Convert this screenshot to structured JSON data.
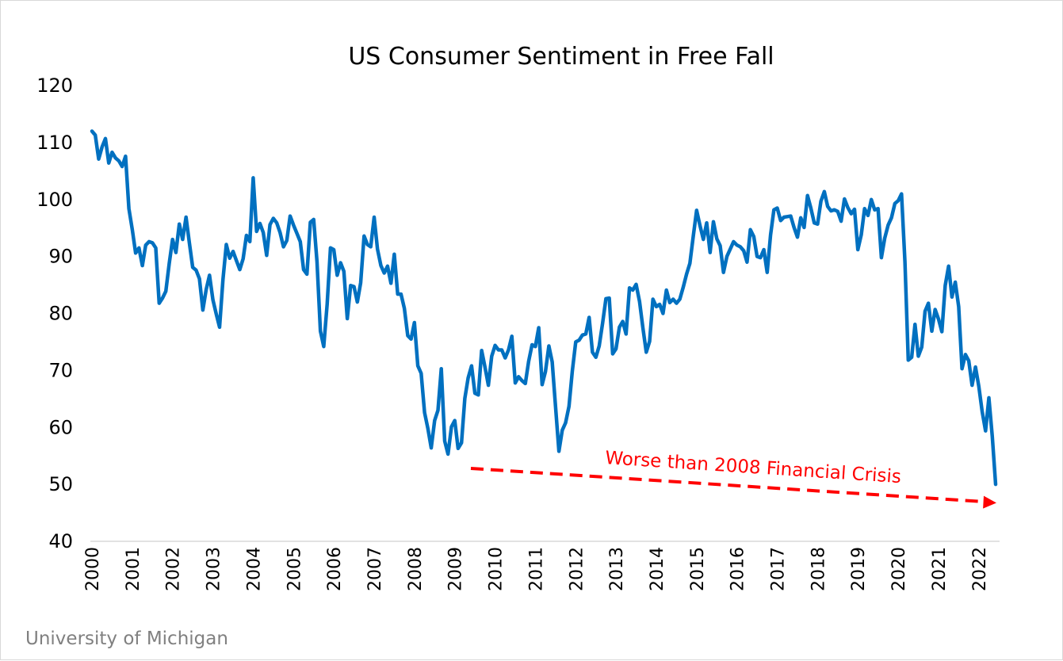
{
  "chart_data": {
    "type": "line",
    "title": "US Consumer Sentiment in Free Fall",
    "xlabel": "",
    "ylabel": "",
    "ylim": [
      40,
      120
    ],
    "y_ticks": [
      "40",
      "50",
      "60",
      "70",
      "80",
      "90",
      "100",
      "110",
      "120"
    ],
    "x_ticks": [
      "2000",
      "2001",
      "2002",
      "2003",
      "2004",
      "2005",
      "2006",
      "2007",
      "2008",
      "2009",
      "2010",
      "2011",
      "2012",
      "2013",
      "2014",
      "2015",
      "2016",
      "2017",
      "2018",
      "2019",
      "2020",
      "2021",
      "2022"
    ],
    "x_range": [
      "2000-01",
      "2022-06"
    ],
    "grid": false,
    "line_color": "#0070C0",
    "series": [
      {
        "x": [
          "2000-01",
          "2000-02",
          "2000-03",
          "2000-04",
          "2000-05",
          "2000-06",
          "2000-07",
          "2000-08",
          "2000-09",
          "2000-10",
          "2000-11",
          "2000-12",
          "2001-01",
          "2001-02",
          "2001-03",
          "2001-04",
          "2001-05",
          "2001-06",
          "2001-07",
          "2001-08",
          "2001-09",
          "2001-10",
          "2001-11",
          "2001-12",
          "2002-01",
          "2002-02",
          "2002-03",
          "2002-04",
          "2002-05",
          "2002-06",
          "2002-07",
          "2002-08",
          "2002-09",
          "2002-10",
          "2002-11",
          "2002-12",
          "2003-01",
          "2003-02",
          "2003-03",
          "2003-04",
          "2003-05",
          "2003-06",
          "2003-07",
          "2003-08",
          "2003-09",
          "2003-10",
          "2003-11",
          "2003-12",
          "2004-01",
          "2004-02",
          "2004-03",
          "2004-04",
          "2004-05",
          "2004-06",
          "2004-07",
          "2004-08",
          "2004-09",
          "2004-10",
          "2004-11",
          "2004-12",
          "2005-01",
          "2005-02",
          "2005-03",
          "2005-04",
          "2005-05",
          "2005-06",
          "2005-07",
          "2005-08",
          "2005-09",
          "2005-10",
          "2005-11",
          "2005-12",
          "2006-01",
          "2006-02",
          "2006-03",
          "2006-04",
          "2006-05",
          "2006-06",
          "2006-07",
          "2006-08",
          "2006-09",
          "2006-10",
          "2006-11",
          "2006-12",
          "2007-01",
          "2007-02",
          "2007-03",
          "2007-04",
          "2007-05",
          "2007-06",
          "2007-07",
          "2007-08",
          "2007-09",
          "2007-10",
          "2007-11",
          "2007-12",
          "2008-01",
          "2008-02",
          "2008-03",
          "2008-04",
          "2008-05",
          "2008-06",
          "2008-07",
          "2008-08",
          "2008-09",
          "2008-10",
          "2008-11",
          "2008-12",
          "2009-01",
          "2009-02",
          "2009-03",
          "2009-04",
          "2009-05",
          "2009-06",
          "2009-07",
          "2009-08",
          "2009-09",
          "2009-10",
          "2009-11",
          "2009-12",
          "2010-01",
          "2010-02",
          "2010-03",
          "2010-04",
          "2010-05",
          "2010-06",
          "2010-07",
          "2010-08",
          "2010-09",
          "2010-10",
          "2010-11",
          "2010-12",
          "2011-01",
          "2011-02",
          "2011-03",
          "2011-04",
          "2011-05",
          "2011-06",
          "2011-07",
          "2011-08",
          "2011-09",
          "2011-10",
          "2011-11",
          "2011-12",
          "2012-01",
          "2012-02",
          "2012-03",
          "2012-04",
          "2012-05",
          "2012-06",
          "2012-07",
          "2012-08",
          "2012-09",
          "2012-10",
          "2012-11",
          "2012-12",
          "2013-01",
          "2013-02",
          "2013-03",
          "2013-04",
          "2013-05",
          "2013-06",
          "2013-07",
          "2013-08",
          "2013-09",
          "2013-10",
          "2013-11",
          "2013-12",
          "2014-01",
          "2014-02",
          "2014-03",
          "2014-04",
          "2014-05",
          "2014-06",
          "2014-07",
          "2014-08",
          "2014-09",
          "2014-10",
          "2014-11",
          "2014-12",
          "2015-01",
          "2015-02",
          "2015-03",
          "2015-04",
          "2015-05",
          "2015-06",
          "2015-07",
          "2015-08",
          "2015-09",
          "2015-10",
          "2015-11",
          "2015-12",
          "2016-01",
          "2016-02",
          "2016-03",
          "2016-04",
          "2016-05",
          "2016-06",
          "2016-07",
          "2016-08",
          "2016-09",
          "2016-10",
          "2016-11",
          "2016-12",
          "2017-01",
          "2017-02",
          "2017-03",
          "2017-04",
          "2017-05",
          "2017-06",
          "2017-07",
          "2017-08",
          "2017-09",
          "2017-10",
          "2017-11",
          "2017-12",
          "2018-01",
          "2018-02",
          "2018-03",
          "2018-04",
          "2018-05",
          "2018-06",
          "2018-07",
          "2018-08",
          "2018-09",
          "2018-10",
          "2018-11",
          "2018-12",
          "2019-01",
          "2019-02",
          "2019-03",
          "2019-04",
          "2019-05",
          "2019-06",
          "2019-07",
          "2019-08",
          "2019-09",
          "2019-10",
          "2019-11",
          "2019-12",
          "2020-01",
          "2020-02",
          "2020-03",
          "2020-04",
          "2020-05",
          "2020-06",
          "2020-07",
          "2020-08",
          "2020-09",
          "2020-10",
          "2020-11",
          "2020-12",
          "2021-01",
          "2021-02",
          "2021-03",
          "2021-04",
          "2021-05",
          "2021-06",
          "2021-07",
          "2021-08",
          "2021-09",
          "2021-10",
          "2021-11",
          "2021-12",
          "2022-01",
          "2022-02",
          "2022-03",
          "2022-04",
          "2022-05",
          "2022-06"
        ],
        "values": [
          112.0,
          111.3,
          107.1,
          109.2,
          110.7,
          106.4,
          108.3,
          107.3,
          106.8,
          105.8,
          107.6,
          98.4,
          94.7,
          90.6,
          91.5,
          88.4,
          92.0,
          92.6,
          92.4,
          91.5,
          81.8,
          82.7,
          83.9,
          88.8,
          93.0,
          90.7,
          95.7,
          93.0,
          96.9,
          92.4,
          88.1,
          87.6,
          86.1,
          80.6,
          84.2,
          86.7,
          82.4,
          79.9,
          77.6,
          86.0,
          92.1,
          89.7,
          90.9,
          89.3,
          87.7,
          89.6,
          93.7,
          92.6,
          103.8,
          94.4,
          95.8,
          94.2,
          90.2,
          95.6,
          96.7,
          95.9,
          94.2,
          91.7,
          92.8,
          97.1,
          95.5,
          94.1,
          92.6,
          87.7,
          86.9,
          96.0,
          96.5,
          89.1,
          76.9,
          74.2,
          81.6,
          91.5,
          91.2,
          86.7,
          88.9,
          87.4,
          79.1,
          84.9,
          84.7,
          82.0,
          85.4,
          93.6,
          92.1,
          91.7,
          96.9,
          91.3,
          88.4,
          87.1,
          88.3,
          85.3,
          90.4,
          83.4,
          83.4,
          80.9,
          76.1,
          75.5,
          78.4,
          70.8,
          69.5,
          62.6,
          59.8,
          56.4,
          61.2,
          63.0,
          70.3,
          57.6,
          55.3,
          60.1,
          61.2,
          56.3,
          57.3,
          65.1,
          68.7,
          70.8,
          66.0,
          65.7,
          73.5,
          70.6,
          67.4,
          72.5,
          74.4,
          73.6,
          73.6,
          72.2,
          73.6,
          76.0,
          67.8,
          68.9,
          68.2,
          67.7,
          71.6,
          74.5,
          74.2,
          77.5,
          67.5,
          69.8,
          74.3,
          71.5,
          63.7,
          55.8,
          59.5,
          60.8,
          63.7,
          69.9,
          75.0,
          75.3,
          76.2,
          76.4,
          79.3,
          73.2,
          72.3,
          74.3,
          78.3,
          82.6,
          82.7,
          72.9,
          73.8,
          77.6,
          78.6,
          76.4,
          84.5,
          84.1,
          85.1,
          82.1,
          77.5,
          73.2,
          75.1,
          82.5,
          81.2,
          81.6,
          80.0,
          84.1,
          81.9,
          82.5,
          81.8,
          82.5,
          84.6,
          86.9,
          88.8,
          93.6,
          98.1,
          95.4,
          93.0,
          95.9,
          90.7,
          96.1,
          93.1,
          91.9,
          87.2,
          90.0,
          91.3,
          92.6,
          92.0,
          91.7,
          91.0,
          89.0,
          94.7,
          93.5,
          90.0,
          89.8,
          91.2,
          87.2,
          93.8,
          98.2,
          98.5,
          96.3,
          96.9,
          97.0,
          97.1,
          95.1,
          93.4,
          96.8,
          95.1,
          100.7,
          98.5,
          95.9,
          95.7,
          99.7,
          101.4,
          98.8,
          98.0,
          98.2,
          97.9,
          96.2,
          100.1,
          98.6,
          97.5,
          98.3,
          91.2,
          93.8,
          98.4,
          97.2,
          100.0,
          98.2,
          98.4,
          89.8,
          93.2,
          95.5,
          96.8,
          99.3,
          99.8,
          101.0,
          89.1,
          71.8,
          72.3,
          78.1,
          72.5,
          74.1,
          80.4,
          81.8,
          76.9,
          80.7,
          79.0,
          76.8,
          84.9,
          88.3,
          82.9,
          85.5,
          81.2,
          70.3,
          72.8,
          71.7,
          67.4,
          70.6,
          67.2,
          62.8,
          59.4,
          65.2,
          58.4,
          50.0
        ]
      }
    ],
    "annotation": {
      "text": "Worse than 2008 Financial Crisis",
      "color": "#FF0000"
    }
  },
  "source": {
    "text": "University of Michigan",
    "color": "#808080"
  }
}
